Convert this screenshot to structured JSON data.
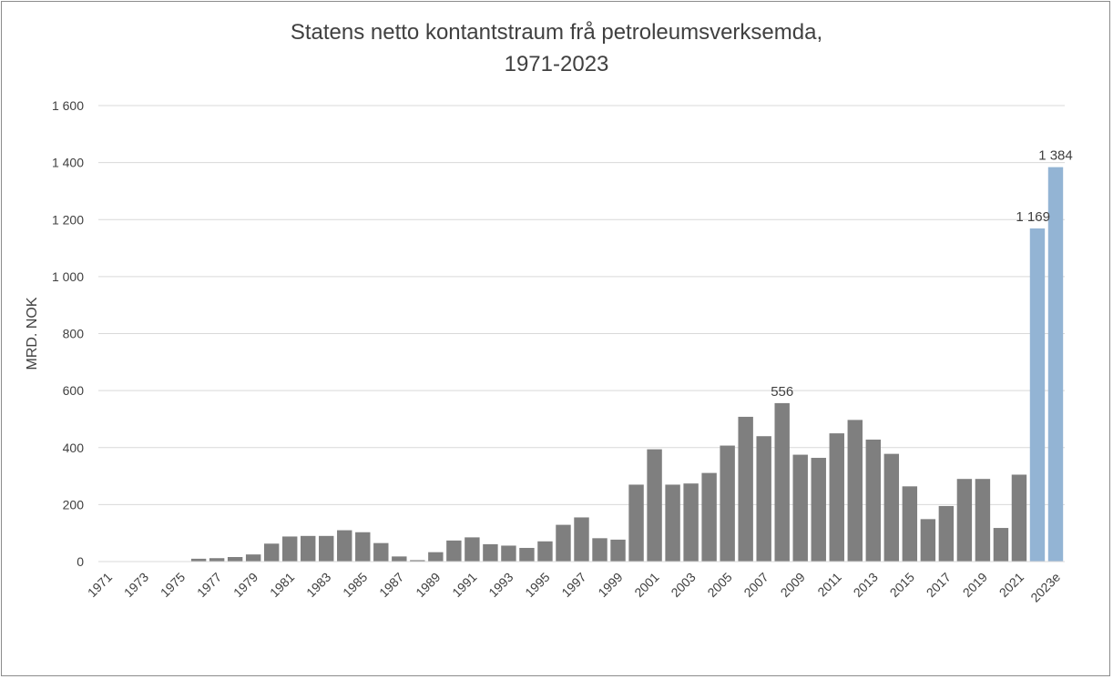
{
  "chart_data": {
    "type": "bar",
    "title_line1": "Statens netto kontantstraum frå petroleumsverksemda,",
    "title_line2": "1971-2023",
    "ylabel": "MRD. NOK",
    "xlabel": "",
    "ylim": [
      0,
      1600
    ],
    "yticks": [
      "0",
      "200",
      "400",
      "600",
      "800",
      "1 000",
      "1 200",
      "1 400",
      "1 600"
    ],
    "ytick_values": [
      0,
      200,
      400,
      600,
      800,
      1000,
      1200,
      1400,
      1600
    ],
    "grid": true,
    "categories": [
      "1971",
      "1972",
      "1973",
      "1974",
      "1975",
      "1976",
      "1977",
      "1978",
      "1979",
      "1980",
      "1981",
      "1982",
      "1983",
      "1984",
      "1985",
      "1986",
      "1987",
      "1988",
      "1989",
      "1990",
      "1991",
      "1992",
      "1993",
      "1994",
      "1995",
      "1996",
      "1997",
      "1998",
      "1999",
      "2000",
      "2001",
      "2002",
      "2003",
      "2004",
      "2005",
      "2006",
      "2007",
      "2008",
      "2009",
      "2010",
      "2011",
      "2012",
      "2013",
      "2014",
      "2015",
      "2016",
      "2017",
      "2018",
      "2019",
      "2020",
      "2021",
      "2022",
      "2023e"
    ],
    "x_tick_labels": [
      "1971",
      "1973",
      "1975",
      "1977",
      "1979",
      "1981",
      "1983",
      "1985",
      "1987",
      "1989",
      "1991",
      "1993",
      "1995",
      "1997",
      "1999",
      "2001",
      "2003",
      "2005",
      "2007",
      "2009",
      "2011",
      "2013",
      "2015",
      "2017",
      "2019",
      "2021",
      "2023e"
    ],
    "values": [
      0,
      0,
      0,
      0,
      1,
      10,
      12,
      16,
      25,
      63,
      88,
      90,
      90,
      110,
      103,
      65,
      18,
      5,
      33,
      74,
      85,
      61,
      56,
      48,
      71,
      129,
      155,
      82,
      77,
      270,
      394,
      270,
      274,
      311,
      407,
      508,
      440,
      556,
      375,
      364,
      450,
      497,
      428,
      378,
      264,
      149,
      195,
      290,
      290,
      118,
      305,
      1169,
      1384
    ],
    "highlight_from_index": 51,
    "colors": {
      "regular": "#7f7f7f",
      "highlight": "#93b4d4",
      "grid": "#d9d9d9",
      "text": "#404040",
      "border": "#8c8c8c"
    },
    "data_labels": [
      {
        "index": 37,
        "text": "556"
      },
      {
        "index": 51,
        "text": "1 169"
      },
      {
        "index": 52,
        "text": "1 384"
      }
    ]
  }
}
